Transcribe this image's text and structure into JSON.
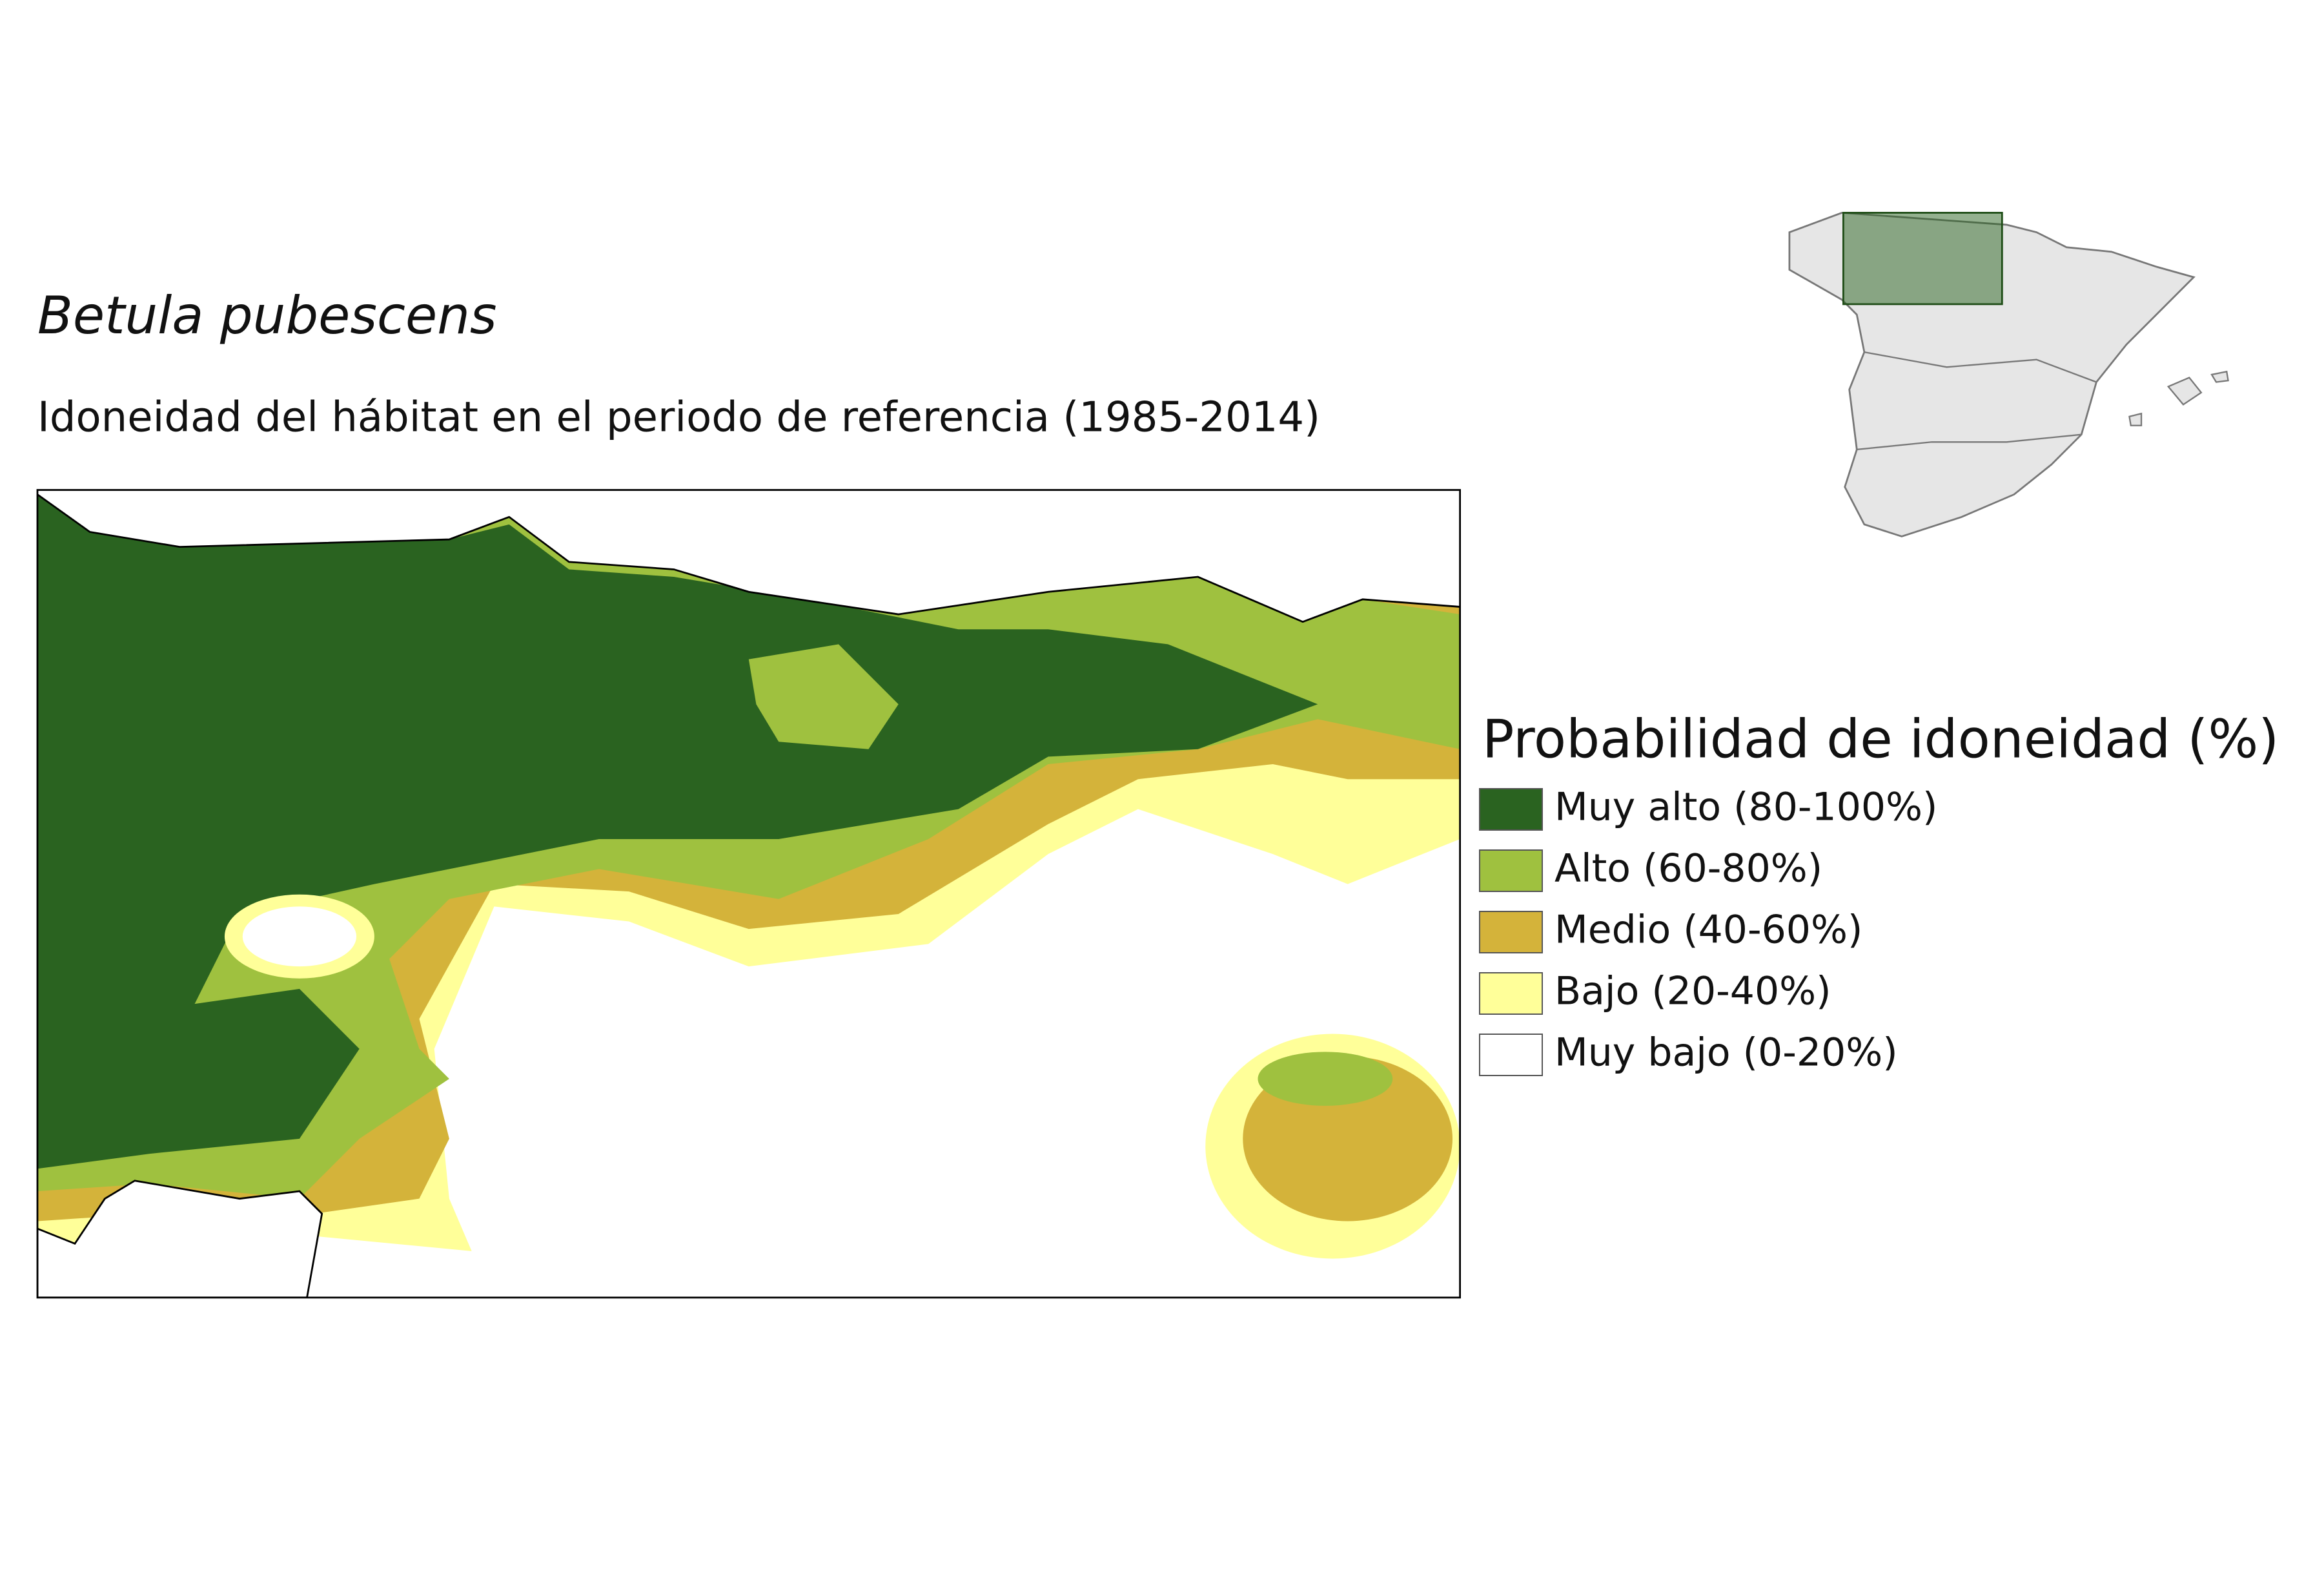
{
  "title": "Betula pubescens",
  "subtitle": "Idoneidad del hábitat en el periodo de referencia (1985-2014)",
  "legend": {
    "title": "Probabilidad de idoneidad (%)",
    "items": [
      {
        "label": "Muy alto (80-100%)",
        "color": "#2a6320"
      },
      {
        "label": "Alto (60-80%)",
        "color": "#9fc13f"
      },
      {
        "label": "Medio (40-60%)",
        "color": "#d4b33a"
      },
      {
        "label": "Bajo (20-40%)",
        "color": "#ffff99"
      },
      {
        "label": "Muy bajo (0-20%)",
        "color": "#ffffff"
      }
    ]
  }
}
